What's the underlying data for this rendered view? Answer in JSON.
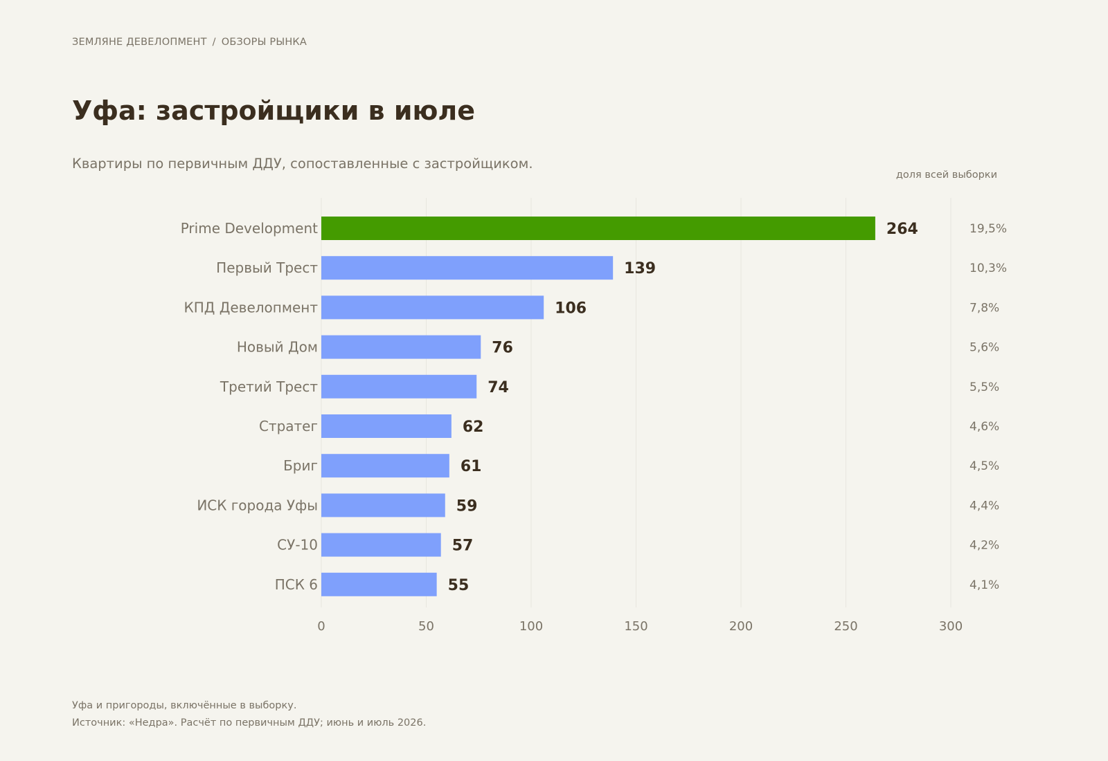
{
  "header": {
    "breadcrumb_company": "ЗЕМЛЯНЕ ДЕВЕЛОПМЕНТ",
    "breadcrumb_separator": "/",
    "breadcrumb_section": "ОБЗОРЫ РЫНКА"
  },
  "colors": {
    "highlight": "#449b00",
    "bar": "#7fa0fc",
    "background": "#f5f4ee",
    "text_dark": "#3b2e1f",
    "text_muted": "#7a7366",
    "grid": "#e8e6df"
  },
  "share_header": "доля всей выборки",
  "footer": {
    "note": "Уфа и пригороды, включённые в выборку.",
    "source": "Источник: «Недра». Расчёт по первичным ДДУ; июнь и июль 2026."
  },
  "chart_data": {
    "type": "bar",
    "orientation": "horizontal",
    "title": "Уфа: застройщики в июле",
    "subtitle": "Квартиры по первичным ДДУ, сопоставленные с застройщиком.",
    "categories": [
      "Prime Development",
      "Первый Трест",
      "КПД Девелопмент",
      "Новый Дом",
      "Третий Трест",
      "Стратег",
      "Бриг",
      "ИСК города Уфы",
      "СУ-10",
      "ПСК 6"
    ],
    "values": [
      264,
      139,
      106,
      76,
      74,
      62,
      61,
      59,
      57,
      55
    ],
    "shares": [
      "19,5%",
      "10,3%",
      "7,8%",
      "5,6%",
      "5,5%",
      "4,6%",
      "4,5%",
      "4,4%",
      "4,2%",
      "4,1%"
    ],
    "highlight_index": 0,
    "xlim": [
      0,
      300
    ],
    "xticks": [
      0,
      50,
      100,
      150,
      200,
      250,
      300
    ],
    "grid": "vertical"
  }
}
